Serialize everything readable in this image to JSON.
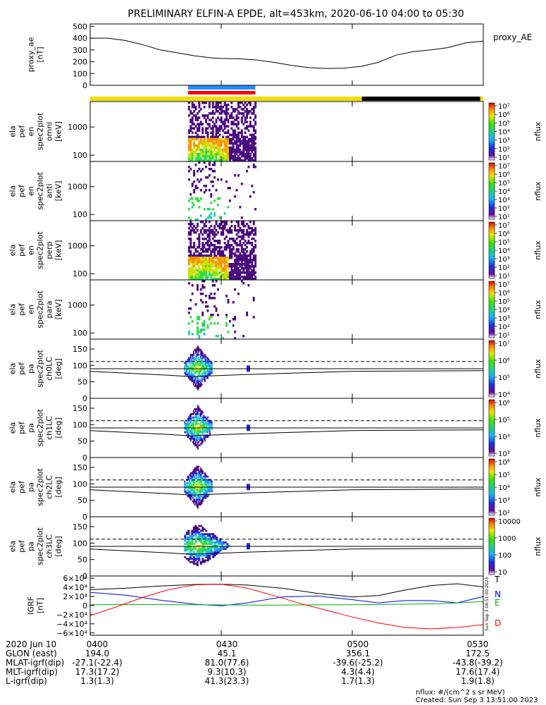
{
  "title": "PRELIMINARY ELFIN-A EPDE, alt=453km, 2020-06-10 04:00 to 05:30",
  "time_axis": {
    "ticks": [
      "0400",
      "0430",
      "0500",
      "0530"
    ],
    "tick_minutes": [
      0,
      30,
      60,
      90
    ],
    "range_minutes": [
      0,
      90
    ]
  },
  "science_zone_bars": [
    {
      "color": "#1e8fff",
      "start_min": 22.4,
      "end_min": 37.8
    },
    {
      "color": "#ff0000",
      "start_min": 22.4,
      "end_min": 37.8
    }
  ],
  "orbit_bar": [
    {
      "color": "#f5dc00",
      "start_min": 0,
      "end_min": 62.2
    },
    {
      "color": "#000000",
      "start_min": 62.2,
      "end_min": 89.3
    },
    {
      "color": "#f5dc00",
      "start_min": 89.3,
      "end_min": 90
    }
  ],
  "colorbars": [
    {
      "label": "nflux",
      "ticks": [
        "10⁷",
        "10⁶",
        "10⁵",
        "10⁴",
        "10³",
        "10²",
        "10¹"
      ]
    },
    {
      "label": "nflux",
      "ticks": [
        "10⁷",
        "10⁶",
        "10⁵",
        "10⁴",
        "10³",
        "10²",
        "10¹"
      ]
    },
    {
      "label": "nflux",
      "ticks": [
        "10⁷",
        "10⁶",
        "10⁵",
        "10⁴",
        "10³",
        "10²",
        "10¹"
      ]
    },
    {
      "label": "nflux",
      "ticks": [
        "10⁷",
        "10⁶",
        "10⁵",
        "10⁴",
        "10³",
        "10²",
        "10¹"
      ]
    },
    {
      "label": "nflux",
      "ticks": [
        "10⁷",
        "10⁶",
        "10⁵",
        "10⁴"
      ]
    },
    {
      "label": "nflux",
      "ticks": [
        "10⁶",
        "10⁵",
        "10⁴",
        "10³"
      ]
    },
    {
      "label": "nflux",
      "ticks": [
        "10⁶",
        "10⁵",
        "10⁴",
        "10³",
        "10²"
      ]
    },
    {
      "label": "nflux",
      "ticks": [
        "10000",
        "1000",
        "100",
        "10"
      ]
    }
  ],
  "chart_data": [
    {
      "type": "line",
      "ylabel": [
        "proxy_ae",
        "[nT]"
      ],
      "ylim": [
        0,
        520
      ],
      "yticks": [
        0,
        100,
        200,
        300,
        400,
        500
      ],
      "series": [
        {
          "name": "proxy_AE",
          "color": "#000000",
          "x": [
            0,
            4,
            8,
            12,
            16,
            20,
            24,
            28,
            30,
            34,
            38,
            42,
            46,
            50,
            54,
            58,
            62,
            66,
            70,
            74,
            78,
            82,
            86,
            90
          ],
          "y": [
            400,
            400,
            380,
            345,
            300,
            275,
            250,
            232,
            228,
            225,
            215,
            195,
            170,
            150,
            143,
            145,
            160,
            195,
            255,
            285,
            300,
            320,
            360,
            375
          ]
        }
      ]
    },
    {
      "type": "heatmap",
      "ylabel": [
        "ela",
        "pef",
        "en",
        "spec2plot",
        "omni",
        "[keV]"
      ],
      "yticks": [
        100,
        1000
      ],
      "ylog": true
    },
    {
      "type": "heatmap",
      "ylabel": [
        "ela",
        "pef",
        "en",
        "spec2plot",
        "anti",
        "[keV]"
      ],
      "yticks": [
        100,
        1000
      ],
      "ylog": true
    },
    {
      "type": "heatmap",
      "ylabel": [
        "ela",
        "pef",
        "en",
        "spec2plot",
        "perp",
        "[keV]"
      ],
      "yticks": [
        100,
        1000
      ],
      "ylog": true
    },
    {
      "type": "heatmap",
      "ylabel": [
        "ela",
        "pef",
        "en",
        "spec2plot",
        "para",
        "[keV]"
      ],
      "yticks": [
        100,
        1000
      ],
      "ylog": true
    },
    {
      "type": "heatmap",
      "ylabel": [
        "ela",
        "pef",
        "pa",
        "spec2plot",
        "ch0LC",
        "[deg]"
      ],
      "yticks": [
        0,
        50,
        100,
        150
      ],
      "ylim": [
        0,
        180
      ]
    },
    {
      "type": "heatmap",
      "ylabel": [
        "ela",
        "pef",
        "pa",
        "spec2plot",
        "ch1LC",
        "[deg]"
      ],
      "yticks": [
        0,
        50,
        100,
        150
      ],
      "ylim": [
        0,
        180
      ]
    },
    {
      "type": "heatmap",
      "ylabel": [
        "ela",
        "pef",
        "pa",
        "spec2plot",
        "ch2LC",
        "[deg]"
      ],
      "yticks": [
        0,
        50,
        100,
        150
      ],
      "ylim": [
        0,
        180
      ]
    },
    {
      "type": "heatmap",
      "ylabel": [
        "ela",
        "pef",
        "pa",
        "spec2plot",
        "ch3LC",
        "[deg]"
      ],
      "yticks": [
        0,
        50,
        100,
        150
      ],
      "ylim": [
        0,
        180
      ]
    },
    {
      "type": "line",
      "ylabel": [
        "IGRF",
        "[nT]"
      ],
      "ylim": [
        -65000,
        65000
      ],
      "yticks": [
        "6×10⁴",
        "4×10⁴",
        "2×10⁴",
        "0",
        "−2×10⁴",
        "−4×10⁴",
        "−6×10⁴"
      ],
      "series": [
        {
          "name": "T",
          "color": "#000000",
          "x": [
            0,
            8,
            16,
            24,
            30,
            36,
            44,
            52,
            60,
            66,
            72,
            78,
            84,
            90
          ],
          "y": [
            35000,
            38000,
            43000,
            46500,
            47000,
            45000,
            38000,
            27000,
            19000,
            22000,
            34000,
            44000,
            48000,
            41000
          ]
        },
        {
          "name": "N",
          "color": "#0000ff",
          "x": [
            0,
            8,
            16,
            24,
            30,
            36,
            44,
            52,
            60,
            66,
            72,
            78,
            84,
            90
          ],
          "y": [
            29000,
            23000,
            12000,
            3000,
            -500,
            6000,
            19000,
            21000,
            13000,
            6000,
            11000,
            11000,
            6000,
            20000
          ]
        },
        {
          "name": "E",
          "color": "#00b000",
          "x": [
            0,
            10,
            20,
            30,
            40,
            50,
            60,
            70,
            80,
            90
          ],
          "y": [
            2000,
            2500,
            2000,
            1500,
            1000,
            1500,
            2000,
            3000,
            4000,
            9000
          ]
        },
        {
          "name": "D",
          "color": "#ff0000",
          "x": [
            0,
            6,
            12,
            18,
            24,
            30,
            36,
            42,
            48,
            54,
            60,
            66,
            72,
            78,
            84,
            90
          ],
          "y": [
            -22000,
            -3000,
            18000,
            35000,
            45500,
            47000,
            38000,
            22000,
            5000,
            -10000,
            -25000,
            -38000,
            -48000,
            -51000,
            -48000,
            -42000
          ]
        }
      ]
    }
  ],
  "ephemeris": {
    "labels": [
      "2020 Jun 10",
      "GLON (east)",
      "MLAT-igrf(dip)",
      "MLT-igrf(dip)",
      "L-igrf(dip)"
    ],
    "columns": [
      [
        "0400",
        "194.0",
        "-27.1(-22.4)",
        "17.3(17.2)",
        "1.3(1.3)"
      ],
      [
        "0430",
        "45.1",
        "81.0(77.6)",
        "9.3(10.3)",
        "41.3(23.3)"
      ],
      [
        "0500",
        "356.1",
        "-39.6(-25.2)",
        "4.3(4.4)",
        "1.7(1.3)"
      ],
      [
        "0530",
        "172.5",
        "-43.8(-39.2)",
        "17.6(17.4)",
        "1.9(1.8)"
      ]
    ]
  },
  "footer": {
    "units": "nflux: #/(cm^2 s sr MeV)",
    "created": "Created: Sun Sep  3 13:51:00 2023",
    "side_stamp": "Sun Sep  3 08:51:00 2023"
  }
}
